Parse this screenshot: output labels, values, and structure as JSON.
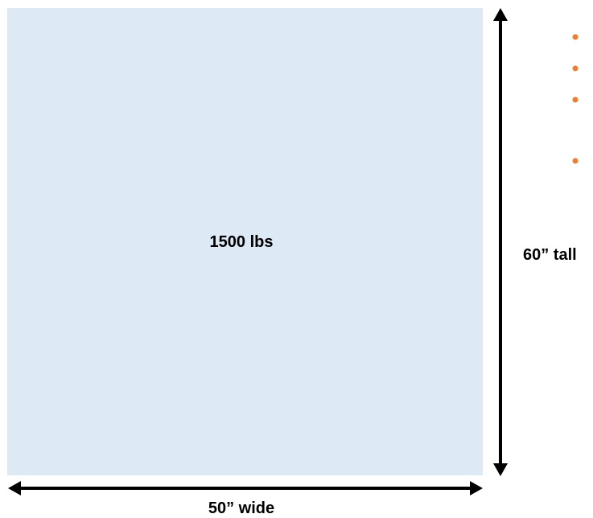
{
  "diagram": {
    "weight_label": "1500 lbs",
    "height_label": "60” tall",
    "width_label": "50” wide"
  },
  "colors": {
    "box_fill": "#dde9f5",
    "arrow": "#000000",
    "bullet": "#ed7d31"
  },
  "bullets": {
    "count": 4
  }
}
